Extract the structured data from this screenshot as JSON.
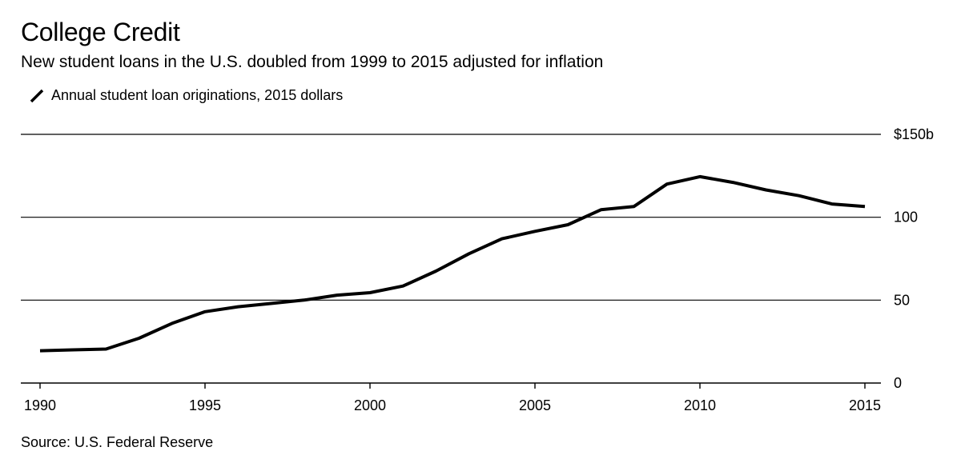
{
  "header": {
    "title": "College Credit",
    "subtitle": "New student loans in the U.S. doubled from 1999 to 2015 adjusted for inflation"
  },
  "footer": {
    "source": "Source: U.S. Federal Reserve"
  },
  "chart_data": {
    "type": "line",
    "title": "College Credit",
    "subtitle": "New student loans in the U.S. doubled from 1999 to 2015 adjusted for inflation",
    "xlabel": "",
    "ylabel": "",
    "legend_position": "top-left",
    "grid": true,
    "xlim": [
      1990,
      2015
    ],
    "ylim": [
      0,
      150
    ],
    "x_ticks": [
      1990,
      1995,
      2000,
      2005,
      2010,
      2015
    ],
    "x_tick_labels": [
      "1990",
      "1995",
      "2000",
      "2005",
      "2010",
      "2015"
    ],
    "y_ticks": [
      0,
      50,
      100,
      150
    ],
    "y_tick_labels": [
      "0",
      "50",
      "100",
      "$150b"
    ],
    "series": [
      {
        "name": "Annual student loan originations, 2015 dollars",
        "color": "#000000",
        "x": [
          1990,
          1991,
          1992,
          1993,
          1994,
          1995,
          1996,
          1997,
          1998,
          1999,
          2000,
          2001,
          2002,
          2003,
          2004,
          2005,
          2006,
          2007,
          2008,
          2009,
          2010,
          2011,
          2012,
          2013,
          2014,
          2015
        ],
        "y": [
          19.5,
          20,
          20.5,
          27,
          36,
          43,
          46,
          48,
          50,
          53,
          54.5,
          58.5,
          67.5,
          78,
          87,
          91.5,
          95.5,
          104.5,
          106.5,
          120,
          124.5,
          121,
          116.5,
          113,
          108,
          106.5
        ]
      }
    ]
  }
}
